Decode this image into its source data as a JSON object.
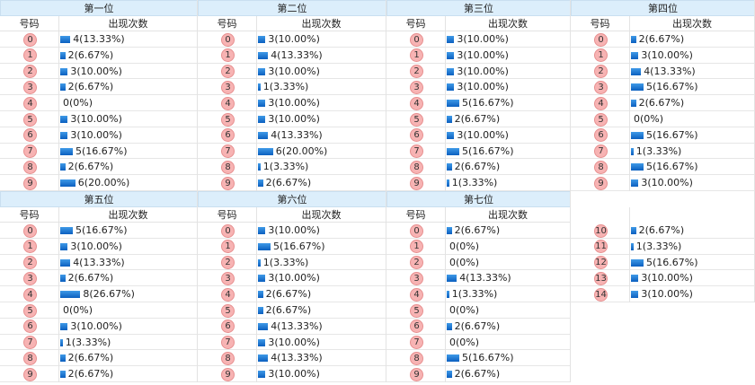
{
  "panels": [
    {
      "title": "第一位",
      "col_num": "号码",
      "col_count": "出现次数",
      "rows": [
        {
          "num": "0",
          "count": 4,
          "label": "4(13.33%)"
        },
        {
          "num": "1",
          "count": 2,
          "label": "2(6.67%)"
        },
        {
          "num": "2",
          "count": 3,
          "label": "3(10.00%)"
        },
        {
          "num": "3",
          "count": 2,
          "label": "2(6.67%)"
        },
        {
          "num": "4",
          "count": 0,
          "label": "0(0%)"
        },
        {
          "num": "5",
          "count": 3,
          "label": "3(10.00%)"
        },
        {
          "num": "6",
          "count": 3,
          "label": "3(10.00%)"
        },
        {
          "num": "7",
          "count": 5,
          "label": "5(16.67%)"
        },
        {
          "num": "8",
          "count": 2,
          "label": "2(6.67%)"
        },
        {
          "num": "9",
          "count": 6,
          "label": "6(20.00%)"
        }
      ]
    },
    {
      "title": "第二位",
      "col_num": "号码",
      "col_count": "出现次数",
      "rows": [
        {
          "num": "0",
          "count": 3,
          "label": "3(10.00%)"
        },
        {
          "num": "1",
          "count": 4,
          "label": "4(13.33%)"
        },
        {
          "num": "2",
          "count": 3,
          "label": "3(10.00%)"
        },
        {
          "num": "3",
          "count": 1,
          "label": "1(3.33%)"
        },
        {
          "num": "4",
          "count": 3,
          "label": "3(10.00%)"
        },
        {
          "num": "5",
          "count": 3,
          "label": "3(10.00%)"
        },
        {
          "num": "6",
          "count": 4,
          "label": "4(13.33%)"
        },
        {
          "num": "7",
          "count": 6,
          "label": "6(20.00%)"
        },
        {
          "num": "8",
          "count": 1,
          "label": "1(3.33%)"
        },
        {
          "num": "9",
          "count": 2,
          "label": "2(6.67%)"
        }
      ]
    },
    {
      "title": "第三位",
      "col_num": "号码",
      "col_count": "出现次数",
      "rows": [
        {
          "num": "0",
          "count": 3,
          "label": "3(10.00%)"
        },
        {
          "num": "1",
          "count": 3,
          "label": "3(10.00%)"
        },
        {
          "num": "2",
          "count": 3,
          "label": "3(10.00%)"
        },
        {
          "num": "3",
          "count": 3,
          "label": "3(10.00%)"
        },
        {
          "num": "4",
          "count": 5,
          "label": "5(16.67%)"
        },
        {
          "num": "5",
          "count": 2,
          "label": "2(6.67%)"
        },
        {
          "num": "6",
          "count": 3,
          "label": "3(10.00%)"
        },
        {
          "num": "7",
          "count": 5,
          "label": "5(16.67%)"
        },
        {
          "num": "8",
          "count": 2,
          "label": "2(6.67%)"
        },
        {
          "num": "9",
          "count": 1,
          "label": "1(3.33%)"
        }
      ]
    },
    {
      "title": "第四位",
      "col_num": "号码",
      "col_count": "出现次数",
      "rows": [
        {
          "num": "0",
          "count": 2,
          "label": "2(6.67%)"
        },
        {
          "num": "1",
          "count": 3,
          "label": "3(10.00%)"
        },
        {
          "num": "2",
          "count": 4,
          "label": "4(13.33%)"
        },
        {
          "num": "3",
          "count": 5,
          "label": "5(16.67%)"
        },
        {
          "num": "4",
          "count": 2,
          "label": "2(6.67%)"
        },
        {
          "num": "5",
          "count": 0,
          "label": "0(0%)"
        },
        {
          "num": "6",
          "count": 5,
          "label": "5(16.67%)"
        },
        {
          "num": "7",
          "count": 1,
          "label": "1(3.33%)"
        },
        {
          "num": "8",
          "count": 5,
          "label": "5(16.67%)"
        },
        {
          "num": "9",
          "count": 3,
          "label": "3(10.00%)"
        }
      ]
    },
    {
      "title": "第五位",
      "col_num": "号码",
      "col_count": "出现次数",
      "rows": [
        {
          "num": "0",
          "count": 5,
          "label": "5(16.67%)"
        },
        {
          "num": "1",
          "count": 3,
          "label": "3(10.00%)"
        },
        {
          "num": "2",
          "count": 4,
          "label": "4(13.33%)"
        },
        {
          "num": "3",
          "count": 2,
          "label": "2(6.67%)"
        },
        {
          "num": "4",
          "count": 8,
          "label": "8(26.67%)"
        },
        {
          "num": "5",
          "count": 0,
          "label": "0(0%)"
        },
        {
          "num": "6",
          "count": 3,
          "label": "3(10.00%)"
        },
        {
          "num": "7",
          "count": 1,
          "label": "1(3.33%)"
        },
        {
          "num": "8",
          "count": 2,
          "label": "2(6.67%)"
        },
        {
          "num": "9",
          "count": 2,
          "label": "2(6.67%)"
        }
      ]
    },
    {
      "title": "第六位",
      "col_num": "号码",
      "col_count": "出现次数",
      "rows": [
        {
          "num": "0",
          "count": 3,
          "label": "3(10.00%)"
        },
        {
          "num": "1",
          "count": 5,
          "label": "5(16.67%)"
        },
        {
          "num": "2",
          "count": 1,
          "label": "1(3.33%)"
        },
        {
          "num": "3",
          "count": 3,
          "label": "3(10.00%)"
        },
        {
          "num": "4",
          "count": 2,
          "label": "2(6.67%)"
        },
        {
          "num": "5",
          "count": 2,
          "label": "2(6.67%)"
        },
        {
          "num": "6",
          "count": 4,
          "label": "4(13.33%)"
        },
        {
          "num": "7",
          "count": 3,
          "label": "3(10.00%)"
        },
        {
          "num": "8",
          "count": 4,
          "label": "4(13.33%)"
        },
        {
          "num": "9",
          "count": 3,
          "label": "3(10.00%)"
        }
      ]
    },
    {
      "title": "第七位",
      "col_num": "号码",
      "col_count": "出现次数",
      "rows": [
        {
          "num": "0",
          "count": 2,
          "label": "2(6.67%)"
        },
        {
          "num": "1",
          "count": 0,
          "label": "0(0%)"
        },
        {
          "num": "2",
          "count": 0,
          "label": "0(0%)"
        },
        {
          "num": "3",
          "count": 4,
          "label": "4(13.33%)"
        },
        {
          "num": "4",
          "count": 1,
          "label": "1(3.33%)"
        },
        {
          "num": "5",
          "count": 0,
          "label": "0(0%)"
        },
        {
          "num": "6",
          "count": 2,
          "label": "2(6.67%)"
        },
        {
          "num": "7",
          "count": 0,
          "label": "0(0%)"
        },
        {
          "num": "8",
          "count": 5,
          "label": "5(16.67%)"
        },
        {
          "num": "9",
          "count": 2,
          "label": "2(6.67%)"
        }
      ]
    },
    {
      "rows": [
        {
          "num": "10",
          "count": 2,
          "label": "2(6.67%)"
        },
        {
          "num": "11",
          "count": 1,
          "label": "1(3.33%)"
        },
        {
          "num": "12",
          "count": 5,
          "label": "5(16.67%)"
        },
        {
          "num": "13",
          "count": 3,
          "label": "3(10.00%)"
        },
        {
          "num": "14",
          "count": 3,
          "label": "3(10.00%)"
        }
      ]
    }
  ]
}
